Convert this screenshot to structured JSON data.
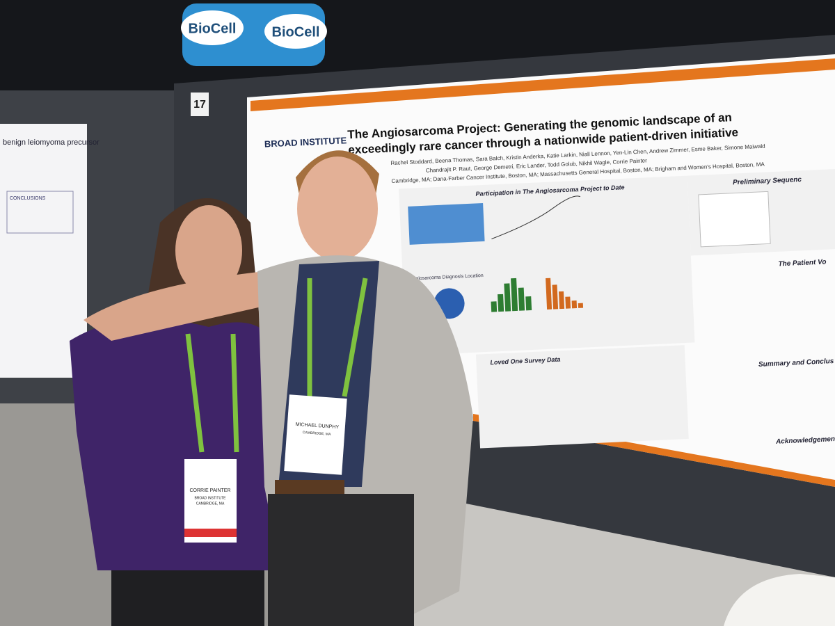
{
  "signage": {
    "booth_sign_left": "BioCell",
    "booth_sign_right": "BioCell",
    "board_number": "17"
  },
  "main_poster": {
    "title_line1": "The Angiosarcoma Project: Generating the genomic landscape of an",
    "title_line2": "exceedingly rare cancer through a nationwide patient-driven initiative",
    "logo": "BROAD INSTITUTE",
    "authors_line1": "Rachel Stoddard, Beena Thomas, Sara Balch, Kristin Anderka, Katie Larkin, Niall Lennon, Yen-Lin Chen, Andrew Zimmer, Esme Baker, Simone Maiwald",
    "authors_line2": "Chandrajit P. Raut, George Demetri, Eric Lander, Todd Golub, Nikhil Wagle, Corrie Painter",
    "affiliations": "Cambridge, MA; Dana-Farber Cancer Institute, Boston, MA; Massachusetts General Hospital, Boston, MA; Brigham and Women's Hospital, Boston, MA",
    "sections": [
      "Participation in The Angiosarcoma Project to Date",
      "Preliminary Sequenc",
      "The Patient Vo",
      "Loved One Survey Data",
      "Summary and Conclus",
      "Acknowledgements",
      "Angiosarcoma Diagnosis Location"
    ]
  },
  "left_poster": {
    "title": "benign leiomyoma precursor",
    "heading": "CONCLUSIONS"
  },
  "badges": [
    {
      "name": "CORRIE PAINTER",
      "org": "BROAD INSTITUTE",
      "city": "CAMBRIDGE, MA"
    },
    {
      "name": "MICHAEL DUNPHY",
      "city": "CAMBRIDGE, MA"
    }
  ]
}
